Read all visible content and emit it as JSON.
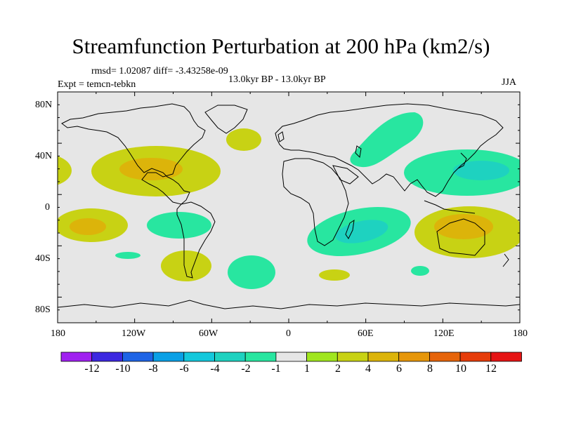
{
  "title": "Streamfunction Perturbation at 200 hPa (km2/s)",
  "stats": "rmsd= 1.02087 diff= -3.43258e-09",
  "experiment": "Expt = temcn-tebkn",
  "period": "13.0kyr BP - 13.0kyr BP",
  "season": "JJA",
  "lat_labels": [
    "80N",
    "40N",
    "0",
    "40S",
    "80S"
  ],
  "lon_labels": [
    "180",
    "120W",
    "60W",
    "0",
    "60E",
    "120E",
    "180"
  ],
  "colorbar": {
    "labels": [
      "-12",
      "-10",
      "-8",
      "-6",
      "-4",
      "-2",
      "-1",
      "1",
      "2",
      "4",
      "6",
      "8",
      "10",
      "12"
    ],
    "colors": [
      "#a020f0",
      "#3c28e0",
      "#1e64e6",
      "#0aa0e6",
      "#14c8dc",
      "#1ed2c0",
      "#28e6a0",
      "#e6e6e6",
      "#a0e61e",
      "#c8d214",
      "#dcb40a",
      "#e6960a",
      "#e6640a",
      "#e63c0a",
      "#e61414"
    ]
  },
  "colors": {
    "background": "#e6e6e6",
    "coast": "#000000"
  },
  "anomalies": [
    {
      "region": "central-north-pacific",
      "level": "2",
      "core_level": "4"
    },
    {
      "region": "gulf-of-mexico",
      "level": "2",
      "core_level": "4"
    },
    {
      "region": "north-atlantic",
      "level": "2"
    },
    {
      "region": "tropical-south-pacific",
      "level": "2",
      "core_level": "4"
    },
    {
      "region": "east-tropical-pacific",
      "level": "-1"
    },
    {
      "region": "southeast-pacific-small",
      "level": "-1"
    },
    {
      "region": "south-atlantic-west",
      "level": "2"
    },
    {
      "region": "south-atlantic-east",
      "level": "-1"
    },
    {
      "region": "central-asia",
      "level": "-1"
    },
    {
      "region": "southern-africa-indian-ocean",
      "level": "-1",
      "core_level": "-2"
    },
    {
      "region": "southern-ocean-small",
      "level": "2"
    },
    {
      "region": "east-asia-west-pacific",
      "level": "-1",
      "core_level": "-2"
    },
    {
      "region": "australia",
      "level": "2",
      "core_level": "4"
    },
    {
      "region": "south-indian-ocean-small",
      "level": "-1"
    }
  ]
}
